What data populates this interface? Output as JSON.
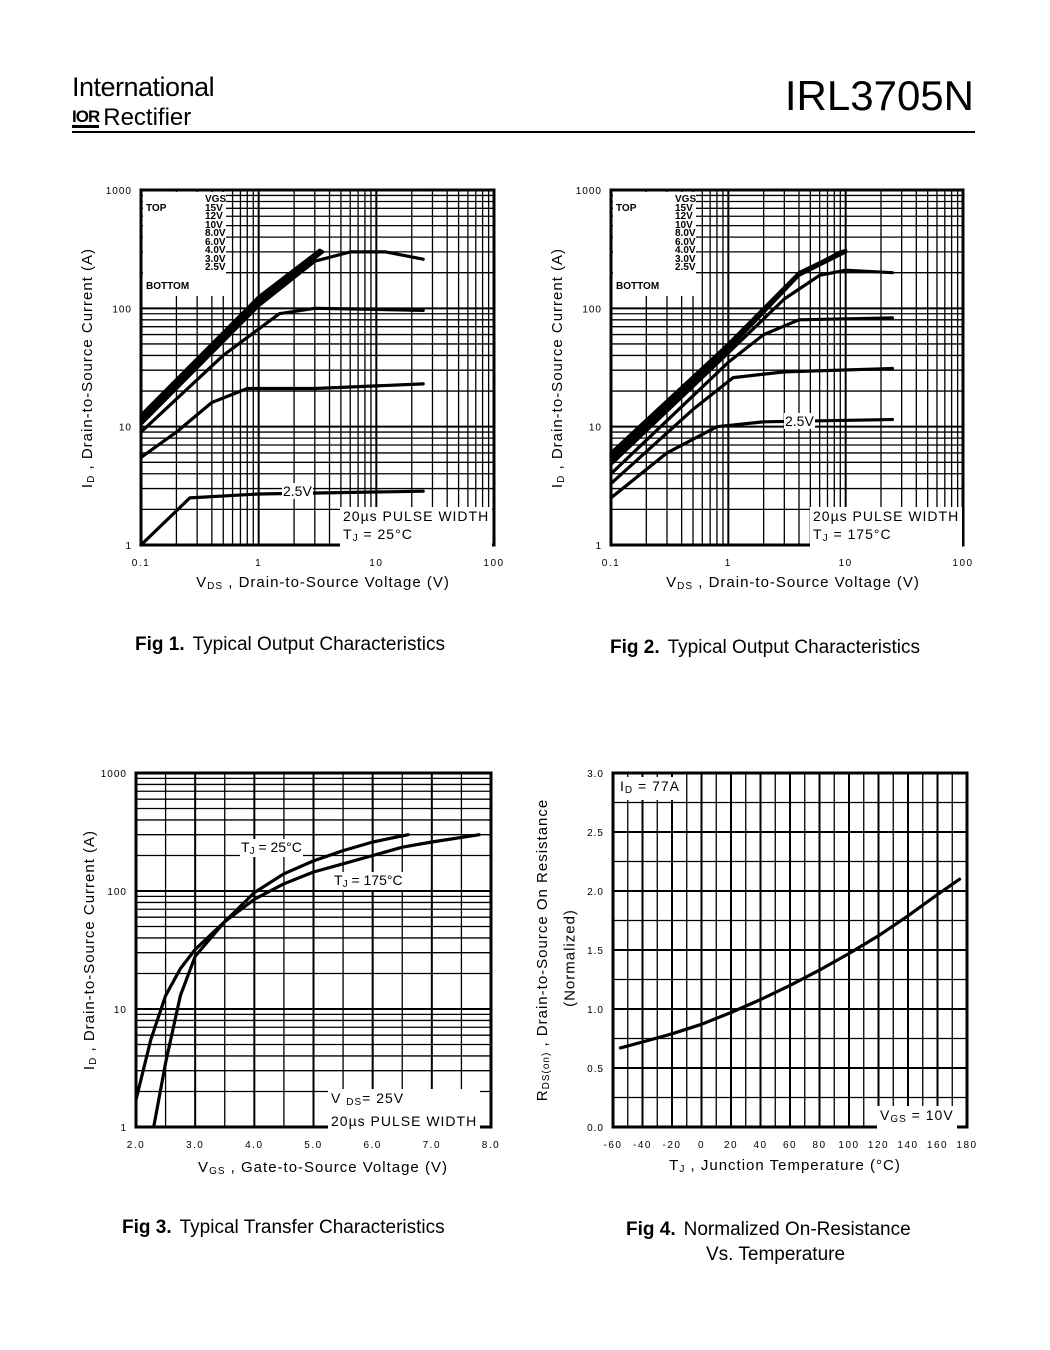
{
  "header": {
    "brand_line1": "International",
    "logo_text": "IOR",
    "brand_line2": "Rectifier",
    "part_number": "IRL3705N"
  },
  "legend": {
    "title": "VGS",
    "top": "TOP",
    "bottom": "BOTTOM",
    "values": [
      "15V",
      "12V",
      "10V",
      "8.0V",
      "6.0V",
      "4.0V",
      "3.0V",
      "2.5V"
    ]
  },
  "chart_data": [
    {
      "id": "fig1",
      "type": "line",
      "caption_num": "Fig 1.",
      "caption": "Typical Output Characteristics",
      "xlabel": "V",
      "xlabel_sub": "DS",
      "xlabel_rest": " , Drain-to-Source Voltage (V)",
      "ylabel": "I",
      "ylabel_sub": "D",
      "ylabel_rest": " , Drain-to-Source Current (A)",
      "xscale": "log",
      "yscale": "log",
      "xlim": [
        0.1,
        100
      ],
      "ylim": [
        1,
        1000
      ],
      "xticks": [
        "0.1",
        "1",
        "10",
        "100"
      ],
      "yticks": [
        "1",
        "10",
        "100",
        "1000"
      ],
      "grid": true,
      "annotation_line1": "20µs PULSE WIDTH",
      "annotation_line2": "T",
      "annotation_sub": "J",
      "annotation_rest": " = 25°C",
      "curve_label": "2.5V",
      "series": [
        {
          "name": "15V",
          "points": [
            [
              0.1,
              12.5
            ],
            [
              1,
              125
            ],
            [
              3.3,
              310
            ]
          ]
        },
        {
          "name": "12V",
          "points": [
            [
              0.1,
              12
            ],
            [
              1,
              122
            ],
            [
              3.3,
              305
            ]
          ]
        },
        {
          "name": "10V",
          "points": [
            [
              0.1,
              11.5
            ],
            [
              1,
              118
            ],
            [
              3.4,
              305
            ]
          ]
        },
        {
          "name": "8.0V",
          "points": [
            [
              0.1,
              11
            ],
            [
              1,
              113
            ],
            [
              3.5,
              300
            ]
          ]
        },
        {
          "name": "6.0V",
          "points": [
            [
              0.1,
              10.5
            ],
            [
              1,
              105
            ],
            [
              3,
              250
            ],
            [
              6,
              300
            ],
            [
              12,
              300
            ],
            [
              25,
              260
            ]
          ]
        },
        {
          "name": "4.0V",
          "points": [
            [
              0.1,
              9
            ],
            [
              0.5,
              40
            ],
            [
              1.5,
              90
            ],
            [
              3,
              100
            ],
            [
              10,
              98
            ],
            [
              25,
              96
            ]
          ]
        },
        {
          "name": "3.0V",
          "points": [
            [
              0.1,
              5.5
            ],
            [
              0.2,
              9
            ],
            [
              0.4,
              16
            ],
            [
              0.8,
              21
            ],
            [
              3,
              21
            ],
            [
              25,
              23
            ]
          ]
        },
        {
          "name": "2.5V",
          "points": [
            [
              0.1,
              1
            ],
            [
              0.26,
              2.5
            ],
            [
              1,
              2.7
            ],
            [
              25,
              2.85
            ]
          ]
        }
      ]
    },
    {
      "id": "fig2",
      "type": "line",
      "caption_num": "Fig 2.",
      "caption": "Typical Output Characteristics",
      "xlabel": "V",
      "xlabel_sub": "DS",
      "xlabel_rest": " , Drain-to-Source Voltage (V)",
      "ylabel": "I",
      "ylabel_sub": "D",
      "ylabel_rest": " , Drain-to-Source Current (A)",
      "xscale": "log",
      "yscale": "log",
      "xlim": [
        0.1,
        100
      ],
      "ylim": [
        1,
        1000
      ],
      "xticks": [
        "0.1",
        "1",
        "10",
        "100"
      ],
      "yticks": [
        "1",
        "10",
        "100",
        "1000"
      ],
      "grid": true,
      "annotation_line1": "20µs PULSE WIDTH",
      "annotation_line2": "T",
      "annotation_sub": "J",
      "annotation_rest": " = 175°C",
      "curve_label": "2.5V",
      "series": [
        {
          "name": "15V",
          "points": [
            [
              0.1,
              6
            ],
            [
              1,
              50
            ],
            [
              4,
              200
            ],
            [
              10,
              310
            ]
          ]
        },
        {
          "name": "12V",
          "points": [
            [
              0.1,
              5.8
            ],
            [
              1,
              49
            ],
            [
              4,
              198
            ],
            [
              9.5,
              305
            ]
          ]
        },
        {
          "name": "10V",
          "points": [
            [
              0.1,
              5.5
            ],
            [
              1,
              47
            ],
            [
              4,
              195
            ],
            [
              9,
              300
            ]
          ]
        },
        {
          "name": "8.0V",
          "points": [
            [
              0.1,
              5.2
            ],
            [
              1,
              45
            ],
            [
              4,
              190
            ],
            [
              10,
              300
            ]
          ]
        },
        {
          "name": "6.0V",
          "points": [
            [
              0.1,
              4.8
            ],
            [
              1,
              42
            ],
            [
              3,
              120
            ],
            [
              6,
              190
            ],
            [
              10,
              210
            ],
            [
              25,
              200
            ]
          ]
        },
        {
          "name": "4.0V",
          "points": [
            [
              0.1,
              4
            ],
            [
              1,
              35
            ],
            [
              2,
              60
            ],
            [
              4,
              80
            ],
            [
              25,
              83
            ]
          ]
        },
        {
          "name": "3.0V",
          "points": [
            [
              0.1,
              3.3
            ],
            [
              0.5,
              14
            ],
            [
              1.1,
              26
            ],
            [
              3,
              29
            ],
            [
              25,
              31
            ]
          ]
        },
        {
          "name": "2.5V",
          "points": [
            [
              0.1,
              2.5
            ],
            [
              0.3,
              6
            ],
            [
              0.8,
              10
            ],
            [
              2,
              11
            ],
            [
              25,
              11.5
            ]
          ]
        }
      ]
    },
    {
      "id": "fig3",
      "type": "line",
      "caption_num": "Fig 3.",
      "caption": "Typical Transfer Characteristics",
      "xlabel": "V",
      "xlabel_sub": "GS",
      "xlabel_rest": " , Gate-to-Source Voltage (V)",
      "ylabel": "I",
      "ylabel_sub": "D",
      "ylabel_rest": " , Drain-to-Source Current (A)",
      "xscale": "linear",
      "yscale": "log",
      "xlim": [
        2.0,
        8.0
      ],
      "ylim": [
        1,
        1000
      ],
      "xticks": [
        "2.0",
        "3.0",
        "4.0",
        "5.0",
        "6.0",
        "7.0",
        "8.0"
      ],
      "yticks": [
        "1",
        "10",
        "100",
        "1000"
      ],
      "grid": true,
      "annotation_line1": "V",
      "annotation_sub1": "DS",
      "annotation_rest1": "= 25V",
      "annotation_line2": "20µs PULSE WIDTH",
      "series": [
        {
          "name": "TJ = 25°C",
          "label_main": "T",
          "label_sub": "J",
          "label_rest": " = 25°C",
          "points": [
            [
              2.0,
              1.7
            ],
            [
              2.25,
              5.5
            ],
            [
              2.5,
              13
            ],
            [
              2.75,
              22
            ],
            [
              3.0,
              32
            ],
            [
              3.5,
              55
            ],
            [
              4.0,
              97
            ],
            [
              4.5,
              140
            ],
            [
              5.0,
              180
            ],
            [
              5.5,
              220
            ],
            [
              6.0,
              260
            ],
            [
              6.6,
              300
            ]
          ]
        },
        {
          "name": "TJ = 175°C",
          "label_main": "T",
          "label_sub": "J",
          "label_rest": " = 175°C",
          "points": [
            [
              2.3,
              1
            ],
            [
              2.5,
              3.5
            ],
            [
              2.75,
              13
            ],
            [
              3.0,
              28
            ],
            [
              3.5,
              55
            ],
            [
              4.0,
              85
            ],
            [
              4.5,
              115
            ],
            [
              5.0,
              145
            ],
            [
              5.5,
              170
            ],
            [
              6.0,
              200
            ],
            [
              6.5,
              235
            ],
            [
              7.0,
              260
            ],
            [
              7.8,
              300
            ]
          ]
        }
      ]
    },
    {
      "id": "fig4",
      "type": "line",
      "caption_num": "Fig 4.",
      "caption": "Normalized On-Resistance",
      "caption_line2": "Vs. Temperature",
      "xlabel": "T",
      "xlabel_sub": "J",
      "xlabel_rest": " , Junction Temperature (°C)",
      "ylabel": "R",
      "ylabel_sub": "DS(on)",
      "ylabel_rest": " ,  Drain-to-Source On Resistance",
      "ylabel_line2": "(Normalized)",
      "xscale": "linear",
      "yscale": "linear",
      "xlim": [
        -60,
        180
      ],
      "ylim": [
        0,
        3
      ],
      "xticks": [
        "-60",
        "-40",
        "-20",
        "0",
        "20",
        "40",
        "60",
        "80",
        "100",
        "120",
        "140",
        "160",
        "180"
      ],
      "yticks": [
        "0.0",
        "0.5",
        "1.0",
        "1.5",
        "2.0",
        "2.5",
        "3.0"
      ],
      "grid": true,
      "annotation_top_main": "I",
      "annotation_top_sub": "D",
      "annotation_top_rest": " = 77A",
      "annotation_bottom_main": "V",
      "annotation_bottom_sub": "GS",
      "annotation_bottom_rest": " = 10V",
      "series": [
        {
          "points": [
            [
              -55,
              0.67
            ],
            [
              -40,
              0.72
            ],
            [
              -20,
              0.79
            ],
            [
              0,
              0.87
            ],
            [
              20,
              0.97
            ],
            [
              40,
              1.08
            ],
            [
              60,
              1.2
            ],
            [
              80,
              1.33
            ],
            [
              100,
              1.47
            ],
            [
              120,
              1.62
            ],
            [
              140,
              1.79
            ],
            [
              160,
              1.97
            ],
            [
              175,
              2.1
            ]
          ]
        }
      ]
    }
  ]
}
